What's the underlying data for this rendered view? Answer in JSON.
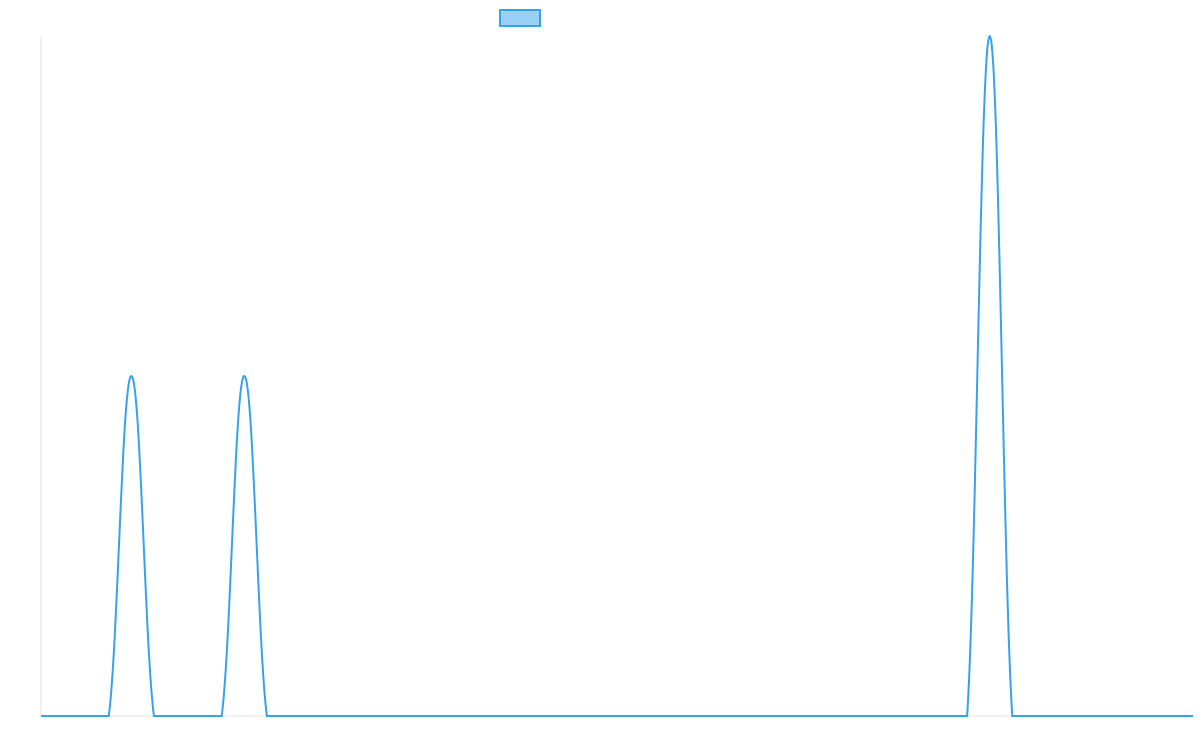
{
  "chart_data": {
    "type": "line",
    "categories": [
      null,
      null,
      null,
      null,
      null,
      null,
      null,
      null,
      null,
      null,
      null,
      null,
      null,
      null,
      null,
      null,
      null,
      null,
      null,
      null,
      null,
      null,
      null,
      null,
      null,
      null,
      null,
      null,
      null,
      null,
      null,
      null,
      null,
      null,
      null,
      null,
      null,
      null,
      null,
      null,
      null,
      null,
      null,
      null,
      null,
      null,
      null,
      null,
      null,
      null,
      null,
      null
    ],
    "series": [
      {
        "color": "#36a2eb",
        "values": [
          0,
          0,
          0,
          0,
          1,
          0,
          0,
          0,
          0,
          1,
          0,
          0,
          0,
          0,
          0,
          0,
          0,
          0,
          0,
          0,
          0,
          0,
          0,
          0,
          0,
          0,
          0,
          0,
          0,
          0,
          0,
          0,
          0,
          0,
          0,
          0,
          0,
          0,
          0,
          0,
          0,
          0,
          2,
          0,
          0,
          0,
          0,
          0,
          0,
          0,
          0,
          0
        ]
      }
    ],
    "ylim": [
      0,
      2
    ],
    "legend": "top"
  }
}
